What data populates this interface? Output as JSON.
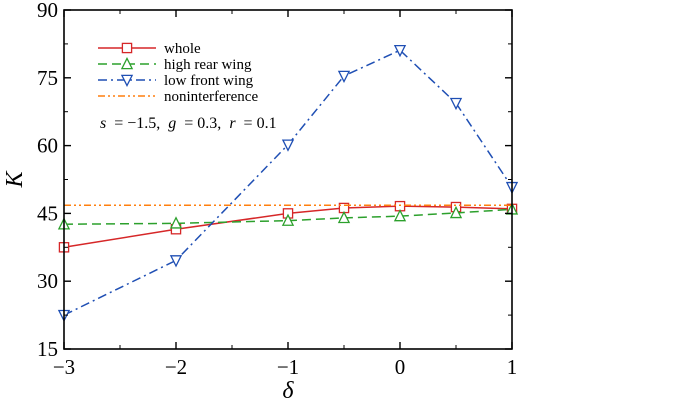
{
  "chart_data": {
    "type": "line",
    "title": "",
    "xlabel": "δ",
    "ylabel": "K",
    "xlim": [
      -3,
      1
    ],
    "ylim": [
      15,
      90
    ],
    "xticks": [
      -3,
      -2,
      -1,
      0,
      1
    ],
    "xtick_labels": [
      "−3",
      "−2",
      "−1",
      "0",
      "1"
    ],
    "yticks": [
      15,
      30,
      45,
      60,
      75,
      90
    ],
    "ytick_labels": [
      "15",
      "30",
      "45",
      "60",
      "75",
      "90"
    ],
    "grid": false,
    "legend_position": "top-left",
    "series": [
      {
        "name": "whole",
        "color": "#d62728",
        "dash": "solid",
        "marker": "square",
        "x": [
          -3,
          -2,
          -1,
          -0.5,
          0,
          0.5,
          1
        ],
        "y": [
          37.5,
          41.5,
          45,
          46.2,
          46.6,
          46.4,
          46.0
        ]
      },
      {
        "name": "high rear wing",
        "color": "#2ca02c",
        "dash": "dashed",
        "marker": "triangle-up",
        "x": [
          -3,
          -2,
          -1,
          -0.5,
          0,
          0.5,
          1
        ],
        "y": [
          42.6,
          42.8,
          43.4,
          44.0,
          44.4,
          45.1,
          45.9
        ]
      },
      {
        "name": "low front wing",
        "color": "#1f4fb4",
        "dash": "dashdot",
        "marker": "triangle-down",
        "x": [
          -3,
          -2,
          -1,
          -0.5,
          0,
          0.5,
          1
        ],
        "y": [
          22.5,
          34.6,
          60.2,
          75.4,
          81.1,
          69.4,
          50.8
        ]
      },
      {
        "name": "noninterference",
        "color": "#ff7f0e",
        "dash": "dashdotdot",
        "marker": "none",
        "x": [
          -3,
          1
        ],
        "y": [
          46.8,
          46.8
        ]
      }
    ],
    "annotation": {
      "s_label": "s",
      "s_value": "= −1.5,",
      "g_label": "g",
      "g_value": "= 0.3,",
      "r_label": "r",
      "r_value": "= 0.1"
    }
  }
}
